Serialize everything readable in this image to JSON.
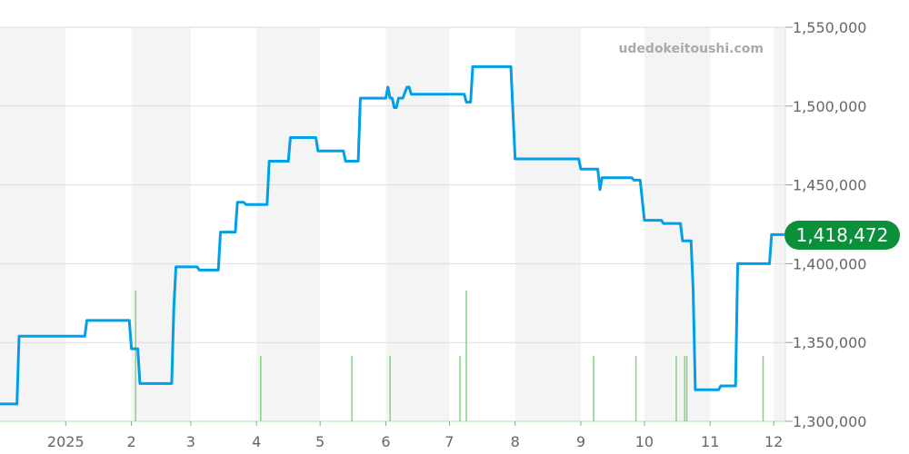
{
  "chart_data": {
    "type": "line",
    "watermark": "udedokeitoushi.com",
    "current_value_label": "1,418,472",
    "colors": {
      "price_line": "#00a0e9",
      "volume_bars": "#7fd67f",
      "badge": "#0b8f3a",
      "band": "#f4f4f4"
    },
    "grid": true,
    "ylim": [
      1300000,
      1550000
    ],
    "y_ticks": [
      {
        "value": 1300000,
        "label": "1,300,000"
      },
      {
        "value": 1350000,
        "label": "1,350,000"
      },
      {
        "value": 1400000,
        "label": "1,400,000"
      },
      {
        "value": 1450000,
        "label": "1,450,000"
      },
      {
        "value": 1500000,
        "label": "1,500,000"
      },
      {
        "value": 1550000,
        "label": "1,550,000"
      }
    ],
    "xlim": [
      "2024-12-01",
      "2025-12-06"
    ],
    "x_ticks": [
      {
        "date": "2025-01-01",
        "label": "2025"
      },
      {
        "date": "2025-02-01",
        "label": "2"
      },
      {
        "date": "2025-03-01",
        "label": "3"
      },
      {
        "date": "2025-04-01",
        "label": "4"
      },
      {
        "date": "2025-05-01",
        "label": "5"
      },
      {
        "date": "2025-06-01",
        "label": "6"
      },
      {
        "date": "2025-07-01",
        "label": "7"
      },
      {
        "date": "2025-08-01",
        "label": "8"
      },
      {
        "date": "2025-09-01",
        "label": "9"
      },
      {
        "date": "2025-10-01",
        "label": "10"
      },
      {
        "date": "2025-11-01",
        "label": "11"
      },
      {
        "date": "2025-12-01",
        "label": "12"
      }
    ],
    "series": [
      {
        "points": [
          [
            "2024-12-01",
            1311000
          ],
          [
            "2024-12-09",
            1311000
          ],
          [
            "2024-12-10",
            1354000
          ],
          [
            "2025-01-10",
            1354000
          ],
          [
            "2025-01-11",
            1364000
          ],
          [
            "2025-01-31",
            1364000
          ],
          [
            "2025-02-01",
            1346000
          ],
          [
            "2025-02-04",
            1346000
          ],
          [
            "2025-02-05",
            1324000
          ],
          [
            "2025-02-20",
            1324000
          ],
          [
            "2025-02-21",
            1372000
          ],
          [
            "2025-02-22",
            1398000
          ],
          [
            "2025-03-04",
            1398000
          ],
          [
            "2025-03-05",
            1396000
          ],
          [
            "2025-03-14",
            1396000
          ],
          [
            "2025-03-15",
            1420000
          ],
          [
            "2025-03-22",
            1420000
          ],
          [
            "2025-03-23",
            1439000
          ],
          [
            "2025-03-26",
            1439000
          ],
          [
            "2025-03-27",
            1437500
          ],
          [
            "2025-04-06",
            1437500
          ],
          [
            "2025-04-07",
            1465000
          ],
          [
            "2025-04-16",
            1465000
          ],
          [
            "2025-04-17",
            1480000
          ],
          [
            "2025-04-29",
            1480000
          ],
          [
            "2025-04-30",
            1471500
          ],
          [
            "2025-05-12",
            1471500
          ],
          [
            "2025-05-13",
            1465000
          ],
          [
            "2025-05-19",
            1465000
          ],
          [
            "2025-05-20",
            1505000
          ],
          [
            "2025-06-01",
            1505000
          ],
          [
            "2025-06-02",
            1512000
          ],
          [
            "2025-06-03",
            1505000
          ],
          [
            "2025-06-04",
            1505000
          ],
          [
            "2025-06-05",
            1499000
          ],
          [
            "2025-06-06",
            1499000
          ],
          [
            "2025-06-07",
            1505000
          ],
          [
            "2025-06-09",
            1505000
          ],
          [
            "2025-06-11",
            1512000
          ],
          [
            "2025-06-12",
            1512000
          ],
          [
            "2025-06-13",
            1507500
          ],
          [
            "2025-07-08",
            1507500
          ],
          [
            "2025-07-09",
            1502500
          ],
          [
            "2025-07-11",
            1502500
          ],
          [
            "2025-07-12",
            1525000
          ],
          [
            "2025-07-30",
            1525000
          ],
          [
            "2025-08-01",
            1466500
          ],
          [
            "2025-08-31",
            1466500
          ],
          [
            "2025-09-01",
            1460000
          ],
          [
            "2025-09-09",
            1460000
          ],
          [
            "2025-09-10",
            1447000
          ],
          [
            "2025-09-11",
            1454500
          ],
          [
            "2025-09-25",
            1454500
          ],
          [
            "2025-09-26",
            1453000
          ],
          [
            "2025-09-29",
            1453000
          ],
          [
            "2025-10-01",
            1427500
          ],
          [
            "2025-10-09",
            1427500
          ],
          [
            "2025-10-10",
            1425500
          ],
          [
            "2025-10-18",
            1425500
          ],
          [
            "2025-10-19",
            1414500
          ],
          [
            "2025-10-23",
            1414500
          ],
          [
            "2025-10-24",
            1383000
          ],
          [
            "2025-10-25",
            1320000
          ],
          [
            "2025-11-05",
            1320000
          ],
          [
            "2025-11-06",
            1322500
          ],
          [
            "2025-11-13",
            1322500
          ],
          [
            "2025-11-14",
            1400000
          ],
          [
            "2025-11-29",
            1400000
          ],
          [
            "2025-11-30",
            1418472
          ],
          [
            "2025-12-06",
            1418472
          ]
        ]
      }
    ],
    "volume": {
      "bars": [
        [
          "2025-02-03",
          2
        ],
        [
          "2025-04-03",
          1
        ],
        [
          "2025-05-16",
          1
        ],
        [
          "2025-06-03",
          1
        ],
        [
          "2025-07-06",
          1
        ],
        [
          "2025-07-09",
          2
        ],
        [
          "2025-09-07",
          1
        ],
        [
          "2025-09-27",
          1
        ],
        [
          "2025-10-16",
          1
        ],
        [
          "2025-10-20",
          1
        ],
        [
          "2025-10-21",
          1
        ],
        [
          "2025-11-26",
          1
        ]
      ]
    }
  }
}
